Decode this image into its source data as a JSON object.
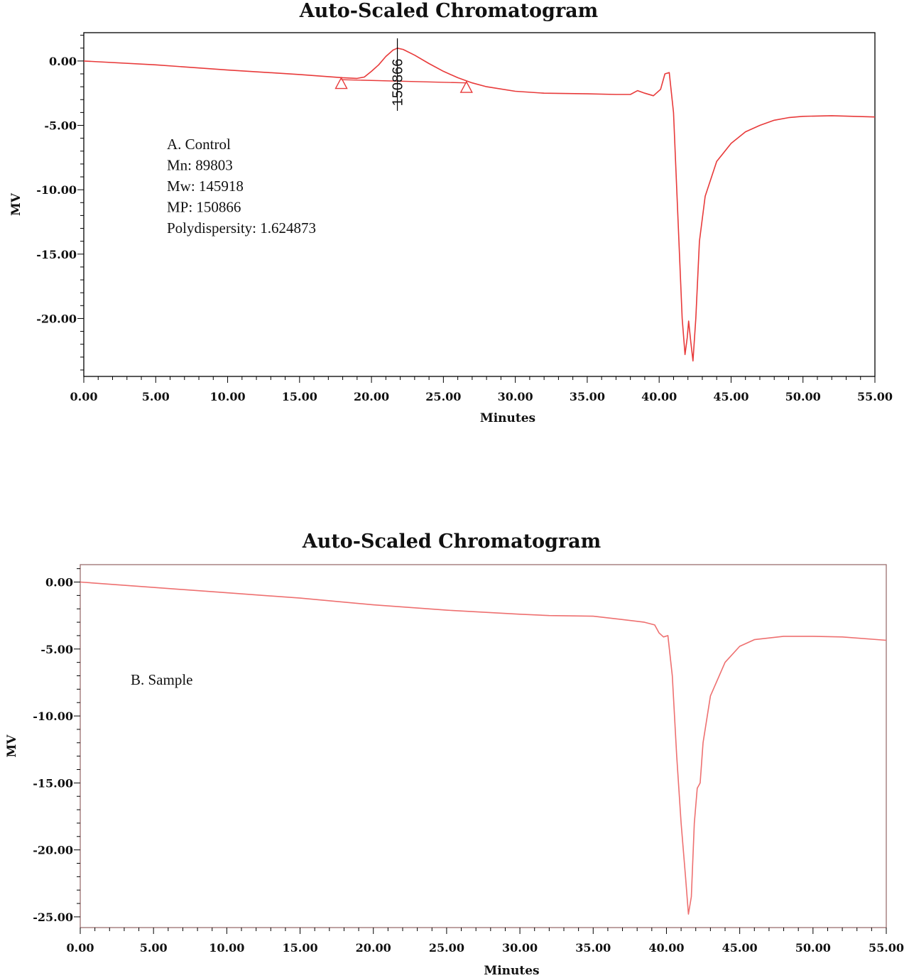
{
  "colors": {
    "trace": "#e83a3a",
    "trace_b": "#ee7070",
    "axis": "#000000",
    "frame_b": "#9b6f6f"
  },
  "chart_data": [
    {
      "type": "line",
      "title": "Auto-Scaled Chromatogram",
      "xlabel": "Minutes",
      "ylabel": "MV",
      "xlim": [
        0,
        55
      ],
      "ylim": [
        -24.5,
        2.2
      ],
      "xticks": [
        "0.00",
        "5.00",
        "10.00",
        "15.00",
        "20.00",
        "25.00",
        "30.00",
        "35.00",
        "40.00",
        "45.00",
        "50.00",
        "55.00"
      ],
      "yticks": [
        "0.00",
        "-5.00",
        "-10.00",
        "-15.00",
        "-20.00"
      ],
      "ytick_values": [
        0,
        -5,
        -10,
        -15,
        -20
      ],
      "grid": false,
      "annotation_lines": [
        "A. Control",
        "Mn: 89803",
        "Mw: 145918",
        "MP: 150866",
        "Polydispersity: 1.624873"
      ],
      "peak_label": {
        "text": "150866",
        "x": 21.8
      },
      "integration_markers": [
        {
          "x": 17.9,
          "y": -1.75
        },
        {
          "x": 26.6,
          "y": -2.05
        }
      ],
      "baseline": [
        [
          17.9,
          -1.45
        ],
        [
          26.6,
          -1.7
        ]
      ],
      "series": [
        {
          "values": [
            [
              0,
              0
            ],
            [
              5,
              -0.3
            ],
            [
              10,
              -0.7
            ],
            [
              15,
              -1.05
            ],
            [
              18,
              -1.3
            ],
            [
              19,
              -1.35
            ],
            [
              19.5,
              -1.25
            ],
            [
              20,
              -0.8
            ],
            [
              20.5,
              -0.3
            ],
            [
              21,
              0.35
            ],
            [
              21.5,
              0.85
            ],
            [
              21.8,
              1.0
            ],
            [
              22.2,
              0.9
            ],
            [
              23,
              0.45
            ],
            [
              24,
              -0.2
            ],
            [
              25,
              -0.8
            ],
            [
              26,
              -1.3
            ],
            [
              27,
              -1.7
            ],
            [
              28,
              -2.0
            ],
            [
              30,
              -2.35
            ],
            [
              32,
              -2.5
            ],
            [
              35,
              -2.55
            ],
            [
              37,
              -2.6
            ],
            [
              38,
              -2.6
            ],
            [
              38.5,
              -2.3
            ],
            [
              39,
              -2.5
            ],
            [
              39.6,
              -2.7
            ],
            [
              40.1,
              -2.2
            ],
            [
              40.4,
              -1.0
            ],
            [
              40.7,
              -0.9
            ],
            [
              41.0,
              -4.0
            ],
            [
              41.3,
              -12.0
            ],
            [
              41.6,
              -20.0
            ],
            [
              41.8,
              -22.8
            ],
            [
              41.95,
              -21.5
            ],
            [
              42.05,
              -20.2
            ],
            [
              42.2,
              -21.8
            ],
            [
              42.35,
              -23.3
            ],
            [
              42.55,
              -20.0
            ],
            [
              42.8,
              -14.0
            ],
            [
              43.2,
              -10.5
            ],
            [
              44,
              -7.8
            ],
            [
              45,
              -6.4
            ],
            [
              46,
              -5.5
            ],
            [
              47,
              -5.0
            ],
            [
              48,
              -4.6
            ],
            [
              49,
              -4.4
            ],
            [
              50,
              -4.3
            ],
            [
              52,
              -4.25
            ],
            [
              55,
              -4.35
            ]
          ]
        }
      ]
    },
    {
      "type": "line",
      "title": "Auto-Scaled Chromatogram",
      "xlabel": "Minutes",
      "ylabel": "MV",
      "xlim": [
        0,
        55
      ],
      "ylim": [
        -25.8,
        1.3
      ],
      "xticks": [
        "0.00",
        "5.00",
        "10.00",
        "15.00",
        "20.00",
        "25.00",
        "30.00",
        "35.00",
        "40.00",
        "45.00",
        "50.00",
        "55.00"
      ],
      "yticks": [
        "0.00",
        "-5.00",
        "-10.00",
        "-15.00",
        "-20.00",
        "-25.00"
      ],
      "ytick_values": [
        0,
        -5,
        -10,
        -15,
        -20,
        -25
      ],
      "grid": false,
      "annotation_lines": [
        "B. Sample"
      ],
      "series": [
        {
          "values": [
            [
              0,
              0
            ],
            [
              5,
              -0.4
            ],
            [
              10,
              -0.8
            ],
            [
              15,
              -1.2
            ],
            [
              20,
              -1.7
            ],
            [
              25,
              -2.1
            ],
            [
              30,
              -2.4
            ],
            [
              32,
              -2.5
            ],
            [
              35,
              -2.55
            ],
            [
              37,
              -2.8
            ],
            [
              38.5,
              -3.0
            ],
            [
              39.2,
              -3.2
            ],
            [
              39.5,
              -3.8
            ],
            [
              39.8,
              -4.1
            ],
            [
              40.1,
              -4.0
            ],
            [
              40.4,
              -7.0
            ],
            [
              40.7,
              -13.0
            ],
            [
              41.0,
              -18.0
            ],
            [
              41.3,
              -22.0
            ],
            [
              41.5,
              -24.8
            ],
            [
              41.7,
              -23.5
            ],
            [
              41.9,
              -18.0
            ],
            [
              42.1,
              -15.4
            ],
            [
              42.3,
              -15.0
            ],
            [
              42.5,
              -12.0
            ],
            [
              43,
              -8.5
            ],
            [
              44,
              -6.0
            ],
            [
              45,
              -4.8
            ],
            [
              46,
              -4.3
            ],
            [
              48,
              -4.05
            ],
            [
              50,
              -4.05
            ],
            [
              52,
              -4.1
            ],
            [
              55,
              -4.35
            ]
          ]
        }
      ]
    }
  ]
}
